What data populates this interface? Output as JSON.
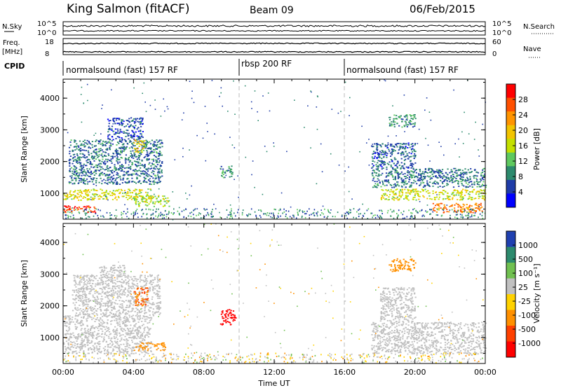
{
  "header": {
    "station": "King Salmon (fitACF)",
    "beam": "Beam 09",
    "date": "06/Feb/2015"
  },
  "top_panels": {
    "nsky_label": "N.Sky",
    "nsky_ticks": [
      "10^5",
      "10^0"
    ],
    "nsearch_label": "N.Search",
    "nsearch_ticks": [
      "10^5",
      "10^0"
    ],
    "freq_label": "Freq.",
    "freq_unit": "[MHz]",
    "freq_ticks": [
      "18",
      "8"
    ],
    "nave_label": "Nave",
    "nave_ticks": [
      "60",
      "0"
    ],
    "cpid_label": "CPID",
    "cpid_segments": [
      {
        "label": "normalsound (fast) 157 RF",
        "start_hour": 0,
        "end_hour": 10
      },
      {
        "label": "rbsp 200 RF",
        "start_hour": 10,
        "end_hour": 16
      },
      {
        "label": "normalsound (fast) 157 RF",
        "start_hour": 16,
        "end_hour": 24
      }
    ]
  },
  "x_axis": {
    "label": "Time UT",
    "ticks": [
      "00:00",
      "04:00",
      "08:00",
      "12:00",
      "16:00",
      "20:00",
      "00:00"
    ]
  },
  "power_colorbar": {
    "label": "Power [dB]",
    "ticks": [
      "28",
      "24",
      "20",
      "16",
      "12",
      "8",
      "4"
    ],
    "colors": [
      "#ff0000",
      "#ff5000",
      "#ff9400",
      "#f2c400",
      "#c4e000",
      "#5fc95f",
      "#2c8a6d",
      "#1f3ca8",
      "#0000ff"
    ]
  },
  "velocity_colorbar": {
    "label": "Velocity [m s⁻¹]",
    "ticks": [
      "1000",
      "500",
      "100",
      "25",
      "-25",
      "-100",
      "-500",
      "-1000"
    ],
    "colors": [
      "#2040b0",
      "#2c8a6d",
      "#70c050",
      "#c0c0c0",
      "#ffd200",
      "#ff9000",
      "#ff4000",
      "#ff0000"
    ]
  },
  "chart_data": [
    {
      "type": "heatmap",
      "ylabel": "Slant Range [km]",
      "xlabel": "Time UT",
      "xlim": [
        0,
        24
      ],
      "ylim": [
        180,
        4600
      ],
      "yticks": [
        1000,
        2000,
        3000,
        4000
      ],
      "colorbar": "Power [dB]",
      "regions": [
        {
          "t0": 0.0,
          "t1": 1.8,
          "r0": 400,
          "r1": 620,
          "value": 28
        },
        {
          "t0": 0.0,
          "t1": 5.0,
          "r0": 800,
          "r1": 1150,
          "value": 16
        },
        {
          "t0": 0.3,
          "t1": 5.6,
          "r0": 1300,
          "r1": 2700,
          "value": 6
        },
        {
          "t0": 2.5,
          "t1": 4.5,
          "r0": 2700,
          "r1": 3400,
          "value": 4
        },
        {
          "t0": 4.0,
          "t1": 4.6,
          "r0": 2300,
          "r1": 2700,
          "value": 18
        },
        {
          "t0": 4.0,
          "t1": 6.0,
          "r0": 600,
          "r1": 950,
          "value": 14
        },
        {
          "t0": 8.9,
          "t1": 9.6,
          "r0": 1500,
          "r1": 1900,
          "value": 8
        },
        {
          "t0": 18.0,
          "t1": 24.0,
          "r0": 800,
          "r1": 1150,
          "value": 16
        },
        {
          "t0": 17.5,
          "t1": 24.0,
          "r0": 1200,
          "r1": 1800,
          "value": 6
        },
        {
          "t0": 17.5,
          "t1": 20.0,
          "r0": 1800,
          "r1": 2600,
          "value": 5
        },
        {
          "t0": 18.5,
          "t1": 20.0,
          "r0": 3100,
          "r1": 3500,
          "value": 8
        },
        {
          "t0": 21.0,
          "t1": 23.8,
          "r0": 400,
          "r1": 700,
          "value": 24
        }
      ]
    },
    {
      "type": "heatmap",
      "ylabel": "Slant Range [km]",
      "xlabel": "Time UT",
      "xlim": [
        0,
        24
      ],
      "ylim": [
        180,
        4600
      ],
      "yticks": [
        1000,
        2000,
        3000,
        4000
      ],
      "colorbar": "Velocity [m s⁻¹]",
      "regions": [
        {
          "t0": 0.0,
          "t1": 5.0,
          "r0": 500,
          "r1": 1700,
          "value": 0
        },
        {
          "t0": 0.5,
          "t1": 5.5,
          "r0": 1700,
          "r1": 3000,
          "value": 0
        },
        {
          "t0": 2.0,
          "t1": 3.5,
          "r0": 2900,
          "r1": 3300,
          "value": 0
        },
        {
          "t0": 4.0,
          "t1": 4.8,
          "r0": 2000,
          "r1": 2600,
          "value": -300
        },
        {
          "t0": 4.0,
          "t1": 5.8,
          "r0": 600,
          "r1": 850,
          "value": -100
        },
        {
          "t0": 8.9,
          "t1": 9.8,
          "r0": 1400,
          "r1": 1900,
          "value": -1000
        },
        {
          "t0": 17.5,
          "t1": 24.0,
          "r0": 500,
          "r1": 1500,
          "value": 0
        },
        {
          "t0": 18.0,
          "t1": 20.0,
          "r0": 1500,
          "r1": 2600,
          "value": 0
        },
        {
          "t0": 18.5,
          "t1": 20.0,
          "r0": 3100,
          "r1": 3500,
          "value": -200
        }
      ]
    }
  ]
}
